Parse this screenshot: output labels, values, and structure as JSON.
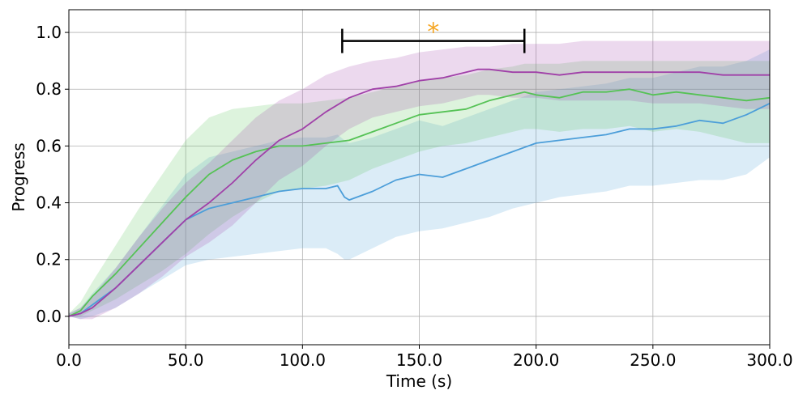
{
  "chart_data": {
    "type": "line",
    "title": "",
    "xlabel": "Time (s)",
    "ylabel": "Progress",
    "xlim": [
      0,
      300
    ],
    "ylim": [
      -0.1,
      1.08
    ],
    "grid": true,
    "xticks": [
      0,
      50,
      100,
      150,
      200,
      250,
      300
    ],
    "xtick_labels": [
      "0.0",
      "50.0",
      "100.0",
      "150.0",
      "200.0",
      "250.0",
      "300.0"
    ],
    "yticks": [
      0.0,
      0.2,
      0.4,
      0.6,
      0.8,
      1.0
    ],
    "ytick_labels": [
      "0.0",
      "0.2",
      "0.4",
      "0.6",
      "0.8",
      "1.0"
    ],
    "series": [
      {
        "color": "#4c9ed9",
        "x": [
          0,
          5,
          10,
          20,
          30,
          40,
          50,
          60,
          70,
          80,
          90,
          100,
          110,
          115,
          118,
          120,
          130,
          140,
          150,
          160,
          170,
          180,
          190,
          200,
          210,
          220,
          230,
          240,
          250,
          260,
          270,
          280,
          290,
          300
        ],
        "y": [
          0,
          0.01,
          0.04,
          0.1,
          0.18,
          0.26,
          0.34,
          0.38,
          0.4,
          0.42,
          0.44,
          0.45,
          0.45,
          0.46,
          0.42,
          0.41,
          0.44,
          0.48,
          0.5,
          0.49,
          0.52,
          0.55,
          0.58,
          0.61,
          0.62,
          0.63,
          0.64,
          0.66,
          0.66,
          0.67,
          0.69,
          0.68,
          0.71,
          0.75
        ],
        "lower": [
          0,
          -0.01,
          0.0,
          0.03,
          0.08,
          0.13,
          0.18,
          0.2,
          0.21,
          0.22,
          0.23,
          0.24,
          0.24,
          0.22,
          0.2,
          0.2,
          0.24,
          0.28,
          0.3,
          0.31,
          0.33,
          0.35,
          0.38,
          0.4,
          0.42,
          0.43,
          0.44,
          0.46,
          0.46,
          0.47,
          0.48,
          0.48,
          0.5,
          0.56
        ],
        "upper": [
          0.01,
          0.03,
          0.08,
          0.17,
          0.28,
          0.39,
          0.5,
          0.56,
          0.58,
          0.6,
          0.62,
          0.63,
          0.63,
          0.64,
          0.62,
          0.61,
          0.63,
          0.66,
          0.69,
          0.67,
          0.7,
          0.73,
          0.76,
          0.79,
          0.8,
          0.81,
          0.82,
          0.84,
          0.84,
          0.86,
          0.88,
          0.88,
          0.9,
          0.94
        ]
      },
      {
        "color": "#55c255",
        "x": [
          0,
          5,
          10,
          20,
          30,
          40,
          50,
          60,
          70,
          80,
          90,
          100,
          110,
          120,
          130,
          140,
          150,
          160,
          170,
          180,
          190,
          195,
          200,
          210,
          220,
          230,
          240,
          250,
          260,
          270,
          280,
          290,
          300
        ],
        "y": [
          0,
          0.02,
          0.07,
          0.15,
          0.24,
          0.33,
          0.42,
          0.5,
          0.55,
          0.58,
          0.6,
          0.6,
          0.61,
          0.62,
          0.65,
          0.68,
          0.71,
          0.72,
          0.73,
          0.76,
          0.78,
          0.79,
          0.78,
          0.77,
          0.79,
          0.79,
          0.8,
          0.78,
          0.79,
          0.78,
          0.77,
          0.76,
          0.77
        ],
        "lower": [
          0,
          0.0,
          0.02,
          0.06,
          0.11,
          0.16,
          0.22,
          0.29,
          0.35,
          0.4,
          0.44,
          0.45,
          0.46,
          0.48,
          0.52,
          0.55,
          0.58,
          0.6,
          0.61,
          0.63,
          0.65,
          0.66,
          0.66,
          0.65,
          0.66,
          0.66,
          0.67,
          0.65,
          0.66,
          0.65,
          0.63,
          0.61,
          0.61
        ],
        "upper": [
          0.01,
          0.05,
          0.12,
          0.25,
          0.38,
          0.5,
          0.62,
          0.7,
          0.73,
          0.74,
          0.75,
          0.75,
          0.76,
          0.77,
          0.79,
          0.81,
          0.83,
          0.84,
          0.85,
          0.87,
          0.88,
          0.89,
          0.89,
          0.89,
          0.9,
          0.9,
          0.9,
          0.9,
          0.9,
          0.9,
          0.9,
          0.9,
          0.9
        ]
      },
      {
        "color": "#a040a8",
        "x": [
          0,
          5,
          10,
          20,
          30,
          40,
          50,
          60,
          70,
          80,
          90,
          100,
          110,
          120,
          130,
          140,
          150,
          160,
          170,
          175,
          180,
          190,
          200,
          210,
          220,
          230,
          240,
          250,
          260,
          270,
          280,
          290,
          300
        ],
        "y": [
          0,
          0.01,
          0.03,
          0.1,
          0.18,
          0.26,
          0.34,
          0.4,
          0.47,
          0.55,
          0.62,
          0.66,
          0.72,
          0.77,
          0.8,
          0.81,
          0.83,
          0.84,
          0.86,
          0.87,
          0.87,
          0.86,
          0.86,
          0.85,
          0.86,
          0.86,
          0.86,
          0.86,
          0.86,
          0.86,
          0.85,
          0.85,
          0.85
        ],
        "lower": [
          0,
          -0.01,
          -0.01,
          0.03,
          0.08,
          0.14,
          0.21,
          0.26,
          0.32,
          0.4,
          0.48,
          0.53,
          0.6,
          0.66,
          0.7,
          0.72,
          0.74,
          0.75,
          0.77,
          0.78,
          0.78,
          0.77,
          0.77,
          0.76,
          0.76,
          0.76,
          0.76,
          0.75,
          0.75,
          0.75,
          0.74,
          0.73,
          0.73
        ],
        "upper": [
          0.01,
          0.03,
          0.07,
          0.17,
          0.28,
          0.38,
          0.47,
          0.54,
          0.62,
          0.7,
          0.76,
          0.8,
          0.85,
          0.88,
          0.9,
          0.91,
          0.93,
          0.94,
          0.95,
          0.95,
          0.95,
          0.96,
          0.96,
          0.96,
          0.97,
          0.97,
          0.97,
          0.97,
          0.97,
          0.97,
          0.97,
          0.97,
          0.97
        ]
      }
    ],
    "annotations": [
      {
        "type": "significance-bracket",
        "x_start": 117,
        "x_end": 195,
        "y": 0.97,
        "label": "*",
        "label_color": "#f5a623"
      }
    ]
  }
}
